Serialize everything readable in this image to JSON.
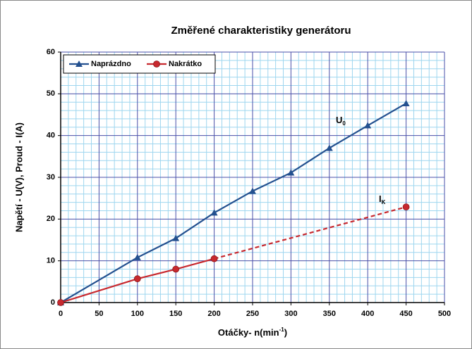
{
  "chart_data": {
    "type": "line",
    "title": "Změřené charakteristiky generátoru",
    "x_label": {
      "text": "Otáčky- n(min",
      "sup": "-1",
      "tail": ")"
    },
    "y_label": "Napětí - U(V), Proud - I(A)",
    "xlim": [
      0,
      500
    ],
    "xticks": [
      0,
      50,
      100,
      150,
      200,
      250,
      300,
      350,
      400,
      450,
      500
    ],
    "ylim": [
      0,
      60
    ],
    "yticks": [
      0,
      10,
      20,
      30,
      40,
      50,
      60
    ],
    "grid": true,
    "legend": "top-left",
    "annotations": [
      {
        "text": "U",
        "sub": "0"
      },
      {
        "text": "I",
        "sub": "K"
      }
    ],
    "series": [
      {
        "name": "Naprázdno",
        "color": "#23508f",
        "marker": "triangle",
        "x": [
          0,
          100,
          150,
          200,
          250,
          300,
          350,
          400,
          450
        ],
        "values": [
          0,
          10.8,
          15.4,
          21.5,
          26.7,
          31.1,
          37,
          42.4,
          47.7
        ],
        "segment_styles": [
          "solid",
          "solid",
          "solid",
          "solid",
          "solid",
          "solid",
          "solid",
          "solid"
        ]
      },
      {
        "name": "Nakrátko",
        "color": "#c8282e",
        "marker": "circle",
        "x": [
          0,
          100,
          150,
          200,
          450
        ],
        "values": [
          0,
          5.7,
          8,
          10.5,
          22.9
        ],
        "segment_styles": [
          "solid",
          "solid",
          "solid",
          "dashed"
        ]
      }
    ]
  }
}
